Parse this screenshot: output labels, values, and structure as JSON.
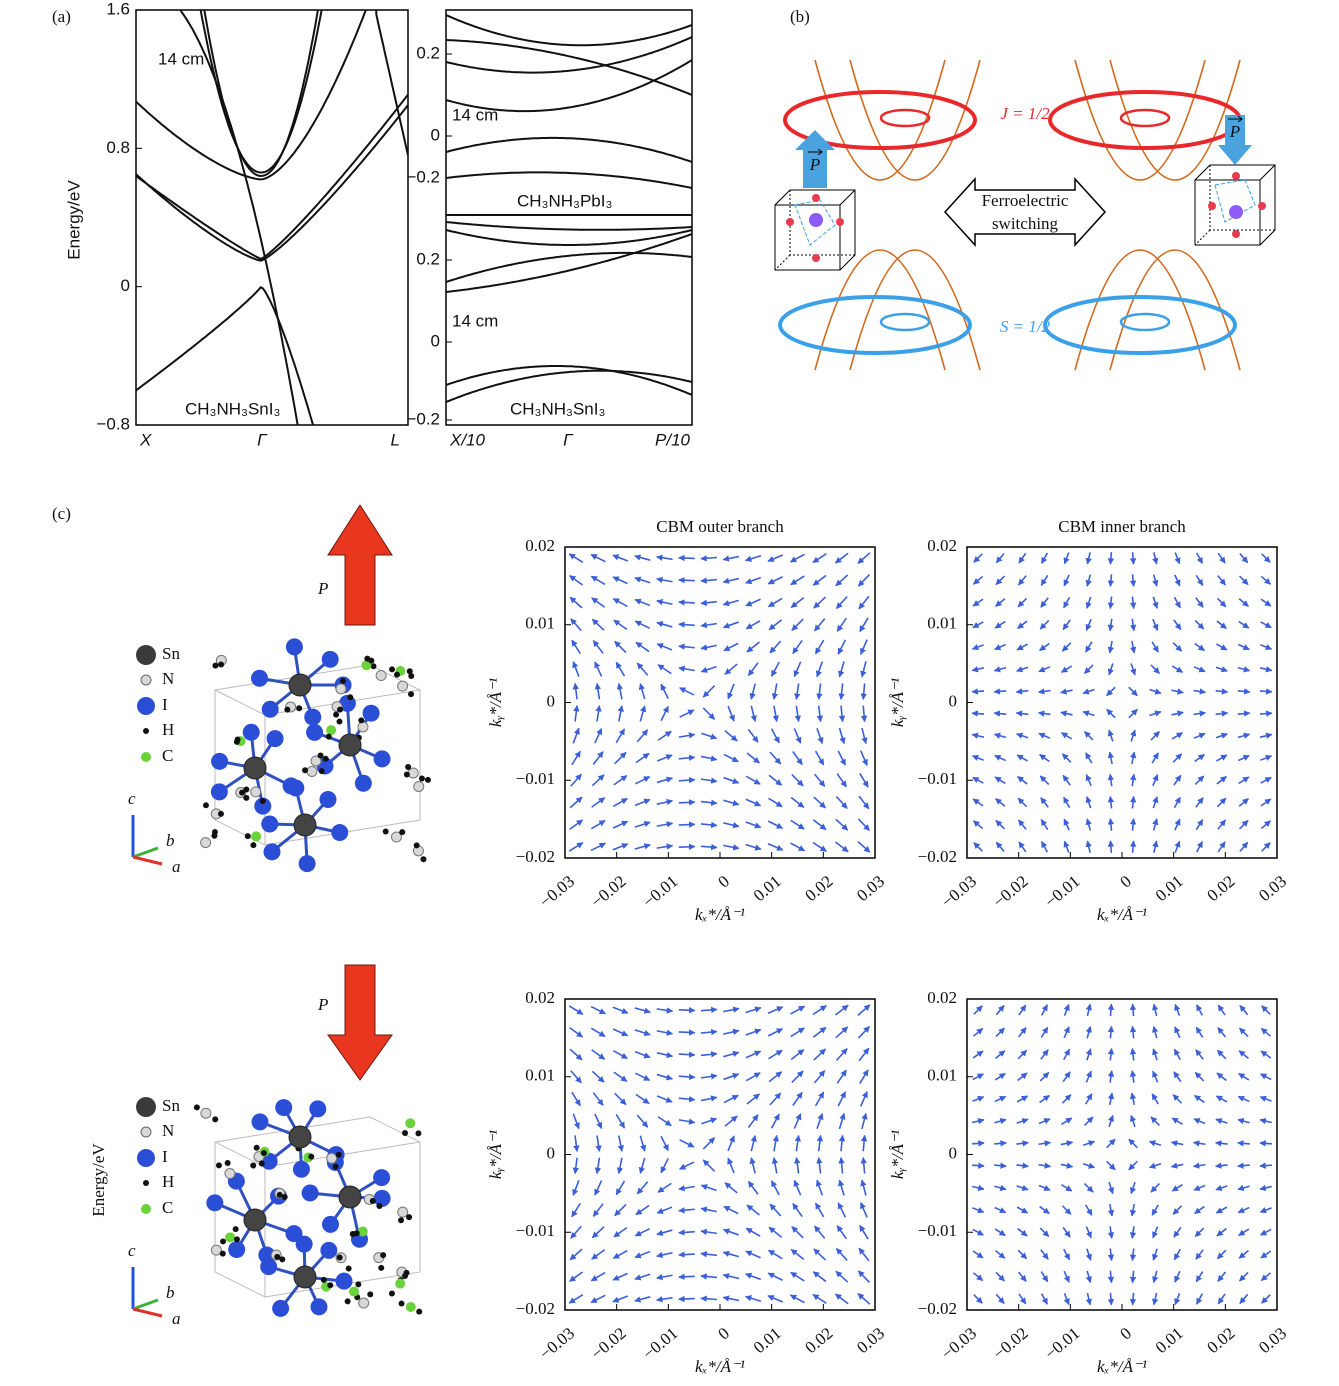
{
  "panel_a": {
    "label": "(a)",
    "y_label": "Energy/eV",
    "left": {
      "ylim": [
        -0.8,
        1.6
      ],
      "yticks": [
        {
          "value": -0.8,
          "label": "−0.8"
        },
        0,
        0.8,
        1.6
      ],
      "xticks": [
        "X",
        "Γ",
        "L"
      ],
      "annotation": "14 cm",
      "material": "CH₃NH₃SnI₃"
    },
    "right": {
      "upper": {
        "yticks": [
          0.2,
          0,
          {
            "value": -0.2,
            "label": "−0.2"
          }
        ],
        "annotation": "14 cm",
        "material": "CH₃NH₃PbI₃"
      },
      "lower": {
        "yticks": [
          0.2,
          0,
          {
            "value": -0.2,
            "label": "−0.2"
          }
        ],
        "annotation": "14 cm",
        "material": "CH₃NH₃SnI₃"
      },
      "xticks": [
        "X/10",
        "Γ",
        "P/10"
      ]
    }
  },
  "panel_b": {
    "label": "(b)",
    "top_label": "J = 1/2",
    "bottom_label": "S = 1/2",
    "switch_label": [
      "Ferroelectric",
      "switching"
    ],
    "polarization": [
      "P",
      "P"
    ]
  },
  "panel_c": {
    "label": "(c)",
    "side_label": "Energy/eV",
    "structures": [
      {
        "polarization": "P",
        "legend": [
          "Sn",
          "N",
          "I",
          "H",
          "C"
        ],
        "axes": [
          "c",
          "b",
          "a"
        ]
      },
      {
        "polarization": "P",
        "legend": [
          "Sn",
          "N",
          "I",
          "H",
          "C"
        ],
        "axes": [
          "c",
          "b",
          "a"
        ]
      }
    ],
    "fields": [
      {
        "title": "CBM outer branch",
        "xlim": [
          -0.03,
          0.03
        ],
        "ylim": [
          -0.02,
          0.02
        ],
        "xticks": [
          {
            "value": -0.03,
            "label": "−0.03"
          },
          {
            "value": -0.02,
            "label": "−0.02"
          },
          {
            "value": -0.01,
            "label": "−0.01"
          },
          0,
          0.01,
          0.02,
          0.03
        ],
        "yticks": [
          {
            "value": -0.02,
            "label": "−0.02"
          },
          {
            "value": -0.01,
            "label": "−0.01"
          },
          0,
          0.01,
          0.02
        ],
        "x_label": "kₓ*/Å⁻¹",
        "y_label": "kᵧ*/Å⁻¹"
      },
      {
        "title": "CBM inner branch",
        "xlim": [
          -0.03,
          0.03
        ],
        "ylim": [
          -0.02,
          0.02
        ],
        "xticks": [
          {
            "value": -0.03,
            "label": "−0.03"
          },
          {
            "value": -0.02,
            "label": "−0.02"
          },
          {
            "value": -0.01,
            "label": "−0.01"
          },
          0,
          0.01,
          0.02,
          0.03
        ],
        "yticks": [
          {
            "value": -0.02,
            "label": "−0.02"
          },
          {
            "value": -0.01,
            "label": "−0.01"
          },
          0,
          0.01,
          0.02
        ],
        "x_label": "kₓ*/Å⁻¹",
        "y_label": "kᵧ*/Å⁻¹"
      },
      {
        "xlim": [
          -0.03,
          0.03
        ],
        "ylim": [
          -0.02,
          0.02
        ],
        "xticks": [
          {
            "value": -0.03,
            "label": "−0.03"
          },
          {
            "value": -0.02,
            "label": "−0.02"
          },
          {
            "value": -0.01,
            "label": "−0.01"
          },
          0,
          0.01,
          0.02,
          0.03
        ],
        "yticks": [
          {
            "value": -0.02,
            "label": "−0.02"
          },
          {
            "value": -0.01,
            "label": "−0.01"
          },
          0,
          0.01,
          0.02
        ],
        "x_label": "kₓ*/Å⁻¹",
        "y_label": "kᵧ*/Å⁻¹"
      },
      {
        "xlim": [
          -0.03,
          0.03
        ],
        "ylim": [
          -0.02,
          0.02
        ],
        "xticks": [
          {
            "value": -0.03,
            "label": "−0.03"
          },
          {
            "value": -0.02,
            "label": "−0.02"
          },
          {
            "value": -0.01,
            "label": "−0.01"
          },
          0,
          0.01,
          0.02,
          0.03
        ],
        "yticks": [
          {
            "value": -0.02,
            "label": "−0.02"
          },
          {
            "value": -0.01,
            "label": "−0.01"
          },
          0,
          0.01,
          0.02
        ],
        "x_label": "kₓ*/Å⁻¹",
        "y_label": "kᵧ*/Å⁻¹"
      }
    ]
  }
}
